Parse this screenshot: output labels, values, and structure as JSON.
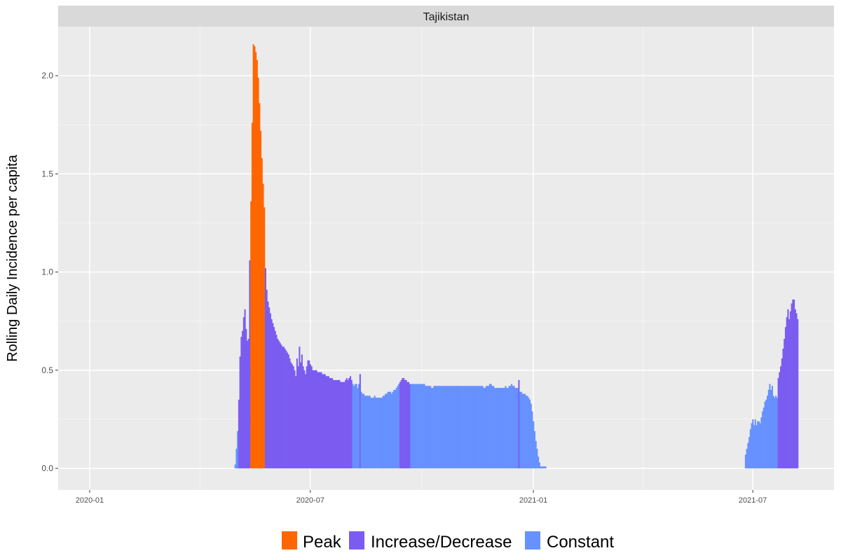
{
  "chart_data": {
    "type": "bar",
    "facet_title": "Tajikistan",
    "xlabel": "",
    "ylabel": "Rolling Daily Incidence per capita",
    "x_ticks": [
      "2020-01",
      "2020-07",
      "2021-01",
      "2021-07"
    ],
    "y_ticks": [
      "0.0",
      "0.5",
      "1.0",
      "1.5",
      "2.0"
    ],
    "ylim": [
      -0.11,
      2.25
    ],
    "xlim": [
      "2019-12-06",
      "2021-09-06"
    ],
    "grid": true,
    "legend_position": "bottom",
    "colors": {
      "Peak": "#FF6600",
      "Increase/Decrease": "#7B5CF0",
      "Constant": "#6691FF"
    },
    "legend": [
      "Peak",
      "Increase/Decrease",
      "Constant"
    ],
    "segments": [
      {
        "start": "2020-04-30",
        "end": "2020-05-02",
        "phase": "Constant",
        "values": [
          0.02,
          0.1,
          0.19
        ]
      },
      {
        "start": "2020-05-03",
        "end": "2020-05-12",
        "phase": "Increase/Decrease",
        "values": [
          0.35,
          0.57,
          0.67,
          0.7,
          0.77,
          0.81,
          0.71,
          0.65,
          0.66,
          1.06
        ]
      },
      {
        "start": "2020-05-13",
        "end": "2020-05-24",
        "phase": "Peak",
        "values": [
          1.36,
          1.76,
          2.16,
          2.15,
          2.12,
          2.08,
          1.99,
          1.86,
          1.72,
          1.58,
          1.45,
          1.33
        ]
      },
      {
        "start": "2020-05-25",
        "end": "2020-08-04",
        "phase": "Increase/Decrease",
        "values": [
          1.02,
          0.91,
          0.85,
          0.82,
          0.79,
          0.76,
          0.74,
          0.72,
          0.7,
          0.68,
          0.66,
          0.65,
          0.64,
          0.63,
          0.62,
          0.62,
          0.61,
          0.6,
          0.59,
          0.58,
          0.56,
          0.54,
          0.53,
          0.52,
          0.5,
          0.47,
          0.56,
          0.52,
          0.62,
          0.54,
          0.58,
          0.52,
          0.5,
          0.48,
          0.52,
          0.55,
          0.55,
          0.53,
          0.52,
          0.5,
          0.5,
          0.5,
          0.5,
          0.49,
          0.49,
          0.49,
          0.49,
          0.48,
          0.48,
          0.48,
          0.47,
          0.47,
          0.47,
          0.46,
          0.46,
          0.46,
          0.45,
          0.45,
          0.45,
          0.45,
          0.45,
          0.45,
          0.44,
          0.44,
          0.44,
          0.44,
          0.45,
          0.46,
          0.45,
          0.46,
          0.47,
          0.45
        ]
      },
      {
        "start": "2020-08-05",
        "end": "2020-08-10",
        "phase": "Constant",
        "values": [
          0.43,
          0.42,
          0.43,
          0.43,
          0.41,
          0.43
        ]
      },
      {
        "start": "2020-08-11",
        "end": "2020-08-11",
        "phase": "Increase/Decrease",
        "values": [
          0.48
        ]
      },
      {
        "start": "2020-08-12",
        "end": "2020-09-12",
        "phase": "Constant",
        "values": [
          0.39,
          0.38,
          0.38,
          0.37,
          0.37,
          0.37,
          0.37,
          0.37,
          0.36,
          0.36,
          0.36,
          0.37,
          0.36,
          0.36,
          0.36,
          0.36,
          0.36,
          0.36,
          0.37,
          0.37,
          0.38,
          0.38,
          0.39,
          0.39,
          0.39,
          0.38,
          0.39,
          0.4,
          0.4,
          0.41,
          0.42,
          0.43
        ]
      },
      {
        "start": "2020-09-13",
        "end": "2020-09-21",
        "phase": "Increase/Decrease",
        "values": [
          0.44,
          0.45,
          0.46,
          0.46,
          0.45,
          0.45,
          0.44,
          0.44,
          0.43
        ]
      },
      {
        "start": "2020-09-22",
        "end": "2020-12-19",
        "phase": "Constant",
        "values": [
          0.43,
          0.43,
          0.43,
          0.43,
          0.43,
          0.43,
          0.43,
          0.43,
          0.43,
          0.43,
          0.43,
          0.43,
          0.42,
          0.42,
          0.42,
          0.42,
          0.42,
          0.41,
          0.41,
          0.42,
          0.42,
          0.42,
          0.42,
          0.42,
          0.42,
          0.42,
          0.42,
          0.42,
          0.42,
          0.42,
          0.42,
          0.42,
          0.42,
          0.42,
          0.42,
          0.42,
          0.42,
          0.42,
          0.42,
          0.42,
          0.42,
          0.42,
          0.42,
          0.42,
          0.42,
          0.42,
          0.42,
          0.42,
          0.42,
          0.42,
          0.42,
          0.42,
          0.42,
          0.42,
          0.42,
          0.42,
          0.42,
          0.42,
          0.42,
          0.42,
          0.41,
          0.41,
          0.42,
          0.42,
          0.42,
          0.43,
          0.43,
          0.42,
          0.42,
          0.41,
          0.41,
          0.41,
          0.41,
          0.41,
          0.41,
          0.41,
          0.41,
          0.41,
          0.42,
          0.41,
          0.41,
          0.42,
          0.42,
          0.43,
          0.42,
          0.42,
          0.41,
          0.41,
          0.41
        ]
      },
      {
        "start": "2020-12-20",
        "end": "2020-12-20",
        "phase": "Increase/Decrease",
        "values": [
          0.45
        ]
      },
      {
        "start": "2020-12-21",
        "end": "2021-01-07",
        "phase": "Constant",
        "values": [
          0.39,
          0.39,
          0.38,
          0.38,
          0.38,
          0.37,
          0.37,
          0.36,
          0.35,
          0.33,
          0.29,
          0.24,
          0.19,
          0.14,
          0.1,
          0.06,
          0.03,
          0.01
        ]
      },
      {
        "start": "2021-01-08",
        "end": "2021-01-11",
        "phase": "Constant",
        "values": [
          0.01,
          0.01,
          0.01,
          0.01
        ]
      },
      {
        "start": "2021-06-25",
        "end": "2021-07-21",
        "phase": "Constant",
        "values": [
          0.07,
          0.1,
          0.13,
          0.16,
          0.2,
          0.23,
          0.25,
          0.22,
          0.25,
          0.22,
          0.24,
          0.24,
          0.23,
          0.26,
          0.29,
          0.31,
          0.34,
          0.35,
          0.37,
          0.4,
          0.43,
          0.4,
          0.42,
          0.37,
          0.36,
          0.37,
          0.36
        ]
      },
      {
        "start": "2021-07-22",
        "end": "2021-08-07",
        "phase": "Increase/Decrease",
        "values": [
          0.46,
          0.49,
          0.52,
          0.56,
          0.61,
          0.66,
          0.72,
          0.77,
          0.81,
          0.76,
          0.8,
          0.84,
          0.86,
          0.86,
          0.81,
          0.79,
          0.76
        ]
      }
    ]
  }
}
